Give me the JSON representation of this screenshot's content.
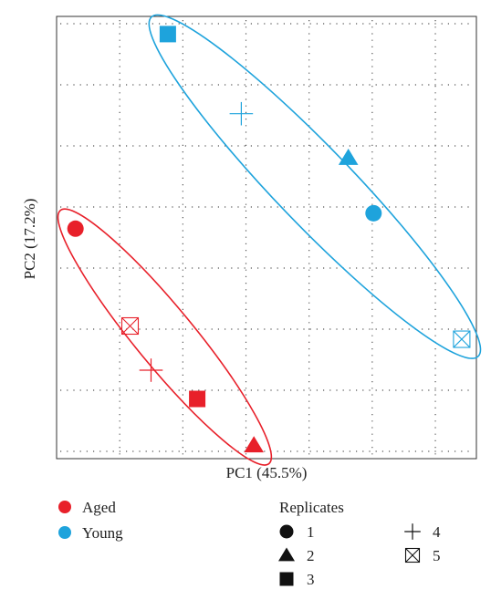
{
  "chart_data": {
    "type": "scatter",
    "xlabel": "PC1 (45.5%)",
    "ylabel": "PC2 (17.2%)",
    "xlim": [
      0,
      10
    ],
    "ylim": [
      0,
      10
    ],
    "grid": true,
    "colors": {
      "Aged": "#e8202a",
      "Young": "#1ea3dc"
    },
    "series": [
      {
        "name": "Aged",
        "color": "#e8202a",
        "points": [
          {
            "replicate": "1",
            "marker": "circle",
            "x": 0.45,
            "y": 5.2
          },
          {
            "replicate": "5",
            "marker": "boxed-x",
            "x": 1.75,
            "y": 3.0
          },
          {
            "replicate": "4",
            "marker": "plus",
            "x": 2.25,
            "y": 2.0
          },
          {
            "replicate": "3",
            "marker": "square",
            "x": 3.35,
            "y": 1.35
          },
          {
            "replicate": "2",
            "marker": "triangle",
            "x": 4.7,
            "y": 0.3
          }
        ]
      },
      {
        "name": "Young",
        "color": "#1ea3dc",
        "points": [
          {
            "replicate": "3",
            "marker": "square",
            "x": 2.65,
            "y": 9.6
          },
          {
            "replicate": "4",
            "marker": "plus",
            "x": 4.4,
            "y": 7.8
          },
          {
            "replicate": "2",
            "marker": "triangle",
            "x": 6.95,
            "y": 6.8
          },
          {
            "replicate": "1",
            "marker": "circle",
            "x": 7.55,
            "y": 5.55
          },
          {
            "replicate": "5",
            "marker": "boxed-x",
            "x": 9.65,
            "y": 2.7
          }
        ]
      }
    ]
  },
  "legend": {
    "groups": [
      {
        "label": "Aged",
        "color": "#e8202a"
      },
      {
        "label": "Young",
        "color": "#1ea3dc"
      }
    ],
    "replicates_title": "Replicates",
    "replicates": [
      {
        "label": "1",
        "marker": "circle"
      },
      {
        "label": "2",
        "marker": "triangle"
      },
      {
        "label": "3",
        "marker": "square"
      },
      {
        "label": "4",
        "marker": "plus"
      },
      {
        "label": "5",
        "marker": "boxed-x"
      }
    ]
  }
}
